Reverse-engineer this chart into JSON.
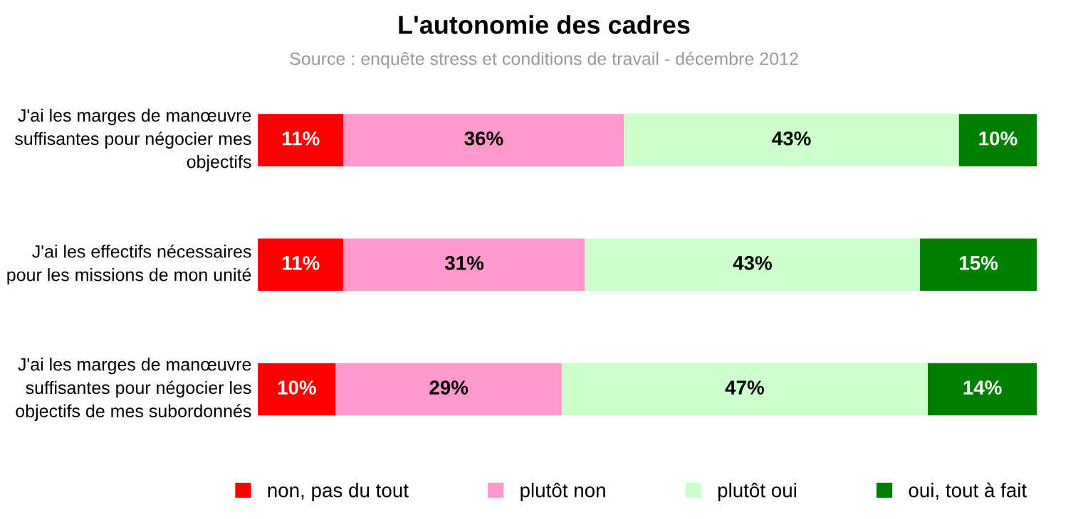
{
  "chart_data": {
    "type": "bar",
    "orientation": "horizontal",
    "stacked": true,
    "title": "L'autonomie des cadres",
    "subtitle": "Source : enquête stress et conditions de travail - décembre 2012",
    "categories": [
      "J'ai les marges de manœuvre suffisantes pour négocier mes objectifs",
      "J'ai les effectifs nécessaires pour les missions de mon unité",
      "J'ai les marges de manœuvre suffisantes pour négocier les objectifs de mes subordonnés"
    ],
    "series": [
      {
        "name": "non, pas du tout",
        "color": "#ff0000",
        "values": [
          11,
          11,
          10
        ],
        "value_labels": [
          "11%",
          "11%",
          "10%"
        ]
      },
      {
        "name": "plutôt non",
        "color": "#ff99cc",
        "values": [
          36,
          31,
          29
        ],
        "value_labels": [
          "36%",
          "31%",
          "29%"
        ]
      },
      {
        "name": "plutôt oui",
        "color": "#ccffcc",
        "values": [
          43,
          43,
          47
        ],
        "value_labels": [
          "43%",
          "43%",
          "47%"
        ]
      },
      {
        "name": "oui, tout à fait",
        "color": "#008000",
        "values": [
          10,
          15,
          14
        ],
        "value_labels": [
          "10%",
          "15%",
          "14%"
        ]
      }
    ],
    "legend": "bottom",
    "tick_labels": "y"
  }
}
